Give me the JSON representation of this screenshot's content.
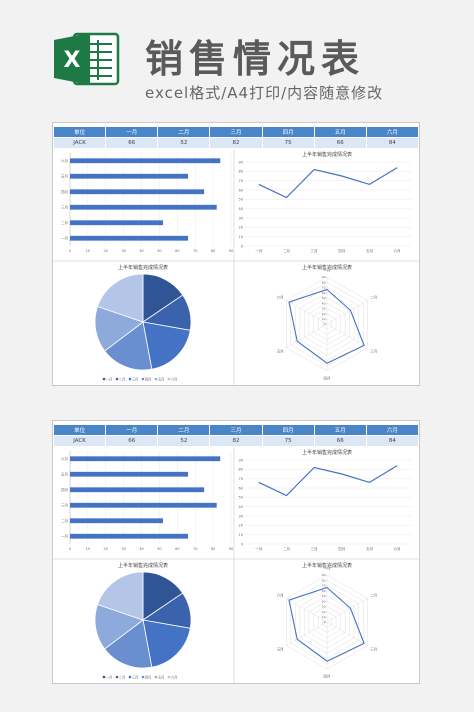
{
  "header": {
    "title": "销售情况表",
    "subtitle": "excel格式/A4打印/内容随意修改",
    "logo_letter": "X"
  },
  "colors": {
    "accent": "#4472c4",
    "header_blue": "#4a86c7",
    "row_blue": "#dbe7f5",
    "pie": [
      "#2f5597",
      "#3b63ad",
      "#4472c4",
      "#6a8fd1",
      "#8ea9db",
      "#b4c6e7"
    ]
  },
  "table": {
    "headers": [
      "单位",
      "一月",
      "二月",
      "三月",
      "四月",
      "五月",
      "六月"
    ],
    "row": [
      "JACK",
      "66",
      "52",
      "82",
      "75",
      "66",
      "84"
    ]
  },
  "chart_data": [
    {
      "type": "bar",
      "orientation": "horizontal",
      "categories": [
        "一月",
        "二月",
        "三月",
        "四月",
        "五月",
        "六月"
      ],
      "values": [
        66,
        52,
        82,
        75,
        66,
        84
      ],
      "xlim": [
        0,
        90
      ],
      "xticks": [
        "0",
        "10",
        "20",
        "30",
        "40",
        "50",
        "60",
        "70",
        "80",
        "90"
      ],
      "grid": true
    },
    {
      "type": "line",
      "title": "上半年销售完成情况表",
      "categories": [
        "一月",
        "二月",
        "三月",
        "四月",
        "五月",
        "六月"
      ],
      "values": [
        66,
        52,
        82,
        75,
        66,
        84
      ],
      "ylim": [
        0,
        90
      ],
      "yticks": [
        "0",
        "10",
        "20",
        "30",
        "40",
        "50",
        "60",
        "70",
        "80",
        "90"
      ],
      "grid": true
    },
    {
      "type": "pie",
      "title": "上半年销售完成情况表",
      "categories": [
        "一月",
        "二月",
        "三月",
        "四月",
        "五月",
        "六月"
      ],
      "values": [
        66,
        52,
        82,
        75,
        66,
        84
      ],
      "legend": "bottom"
    },
    {
      "type": "radar",
      "title": "上半年销售完成情况表",
      "categories": [
        "一月",
        "二月",
        "三月",
        "四月",
        "五月",
        "六月"
      ],
      "values": [
        66,
        52,
        82,
        75,
        66,
        84
      ],
      "rlim": [
        0,
        90
      ],
      "rticks": [
        "0",
        "10",
        "20",
        "30",
        "40",
        "50",
        "60",
        "70",
        "80",
        "90"
      ]
    }
  ]
}
